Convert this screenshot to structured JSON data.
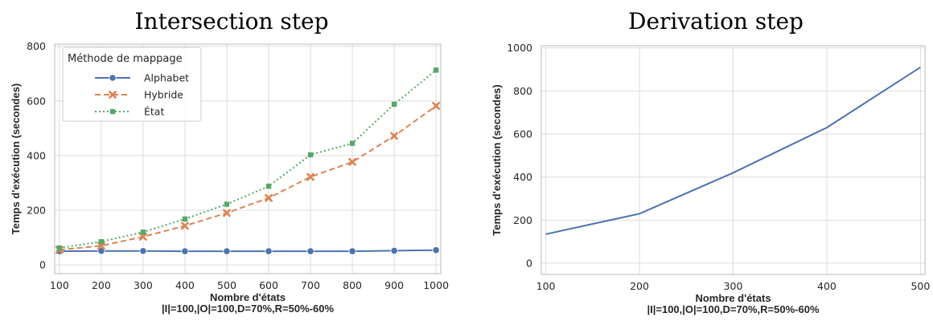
{
  "chart_data": [
    {
      "type": "line",
      "title": "Intersection step",
      "xlabel": "Nombre d'états",
      "xlabel_line2": "|I|=100,|O|=100,D=70%,R=50%-60%",
      "ylabel": "Temps d'exécution (secondes)",
      "x": [
        100,
        200,
        300,
        400,
        500,
        600,
        700,
        800,
        900,
        1000
      ],
      "xticks": [
        "100",
        "200",
        "300",
        "400",
        "500",
        "600",
        "700",
        "800",
        "900",
        "1000"
      ],
      "yticks": [
        "0",
        "200",
        "400",
        "600",
        "800"
      ],
      "xlim": [
        100,
        1000
      ],
      "ylim": [
        0,
        800
      ],
      "grid": true,
      "legend": {
        "title": "Méthode de mappage",
        "placement": "top-left"
      },
      "series": [
        {
          "name": "Alphabet",
          "color": "#4c72b0",
          "style": "solid",
          "marker": "circle",
          "values": [
            50,
            51,
            51,
            50,
            50,
            50,
            50,
            50,
            52,
            54
          ]
        },
        {
          "name": "Hybride",
          "color": "#dd8452",
          "style": "dashed",
          "marker": "x",
          "values": [
            55,
            70,
            103,
            143,
            190,
            245,
            322,
            377,
            472,
            582
          ]
        },
        {
          "name": "État",
          "color": "#55a868",
          "style": "dotted",
          "marker": "square",
          "values": [
            62,
            85,
            120,
            168,
            222,
            288,
            403,
            445,
            588,
            713
          ]
        }
      ]
    },
    {
      "type": "line",
      "title": "Derivation step",
      "xlabel": "Nombre d'états",
      "xlabel_line2": "|I|=100,|O|=100,D=70%,R=50%-60%",
      "ylabel": "Temps d'exécution (secondes)",
      "x": [
        100,
        200,
        300,
        400,
        500
      ],
      "xticks": [
        "100",
        "200",
        "300",
        "400",
        "500"
      ],
      "yticks": [
        "0",
        "200",
        "400",
        "600",
        "800",
        "1000"
      ],
      "xlim": [
        100,
        500
      ],
      "ylim": [
        0,
        1000
      ],
      "grid": true,
      "series": [
        {
          "color": "#4c72b0",
          "style": "solid",
          "values": [
            135,
            230,
            420,
            630,
            910
          ]
        }
      ]
    }
  ]
}
